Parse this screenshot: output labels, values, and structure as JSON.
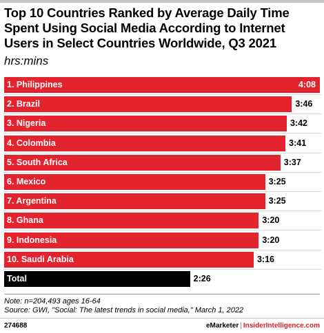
{
  "header": {
    "title": "Top 10 Countries Ranked by Average Daily Time Spent Using Social Media According to Internet Users in Select Countries Worldwide, Q3 2021",
    "subtitle": "hrs:mins"
  },
  "chart_data": {
    "type": "bar",
    "orientation": "horizontal",
    "categories": [
      "1. Philippines",
      "2. Brazil",
      "3. Nigeria",
      "4. Colombia",
      "5. South Africa",
      "6. Mexico",
      "7. Argentina",
      "8. Ghana",
      "9. Indonesia",
      "10. Saudi Arabia",
      "Total"
    ],
    "labels": [
      "4:08",
      "3:46",
      "3:42",
      "3:41",
      "3:37",
      "3:25",
      "3:25",
      "3:20",
      "3:20",
      "3:16",
      "2:26"
    ],
    "values": [
      248,
      226,
      222,
      221,
      217,
      205,
      205,
      200,
      200,
      196,
      146
    ],
    "value_unit": "minutes",
    "colors": {
      "bar": "#e3232d",
      "total": "#000000"
    },
    "grid": true,
    "legend": "none"
  },
  "notes": {
    "note": "Note: n=204,493 ages 16-64",
    "source": "Source: GWI, \"Social: The latest trends in social media,\" March 1, 2022"
  },
  "footer": {
    "id": "274688",
    "brand_a": "eMarketer",
    "sep": "|",
    "brand_b": "InsiderIntelligence.com"
  }
}
